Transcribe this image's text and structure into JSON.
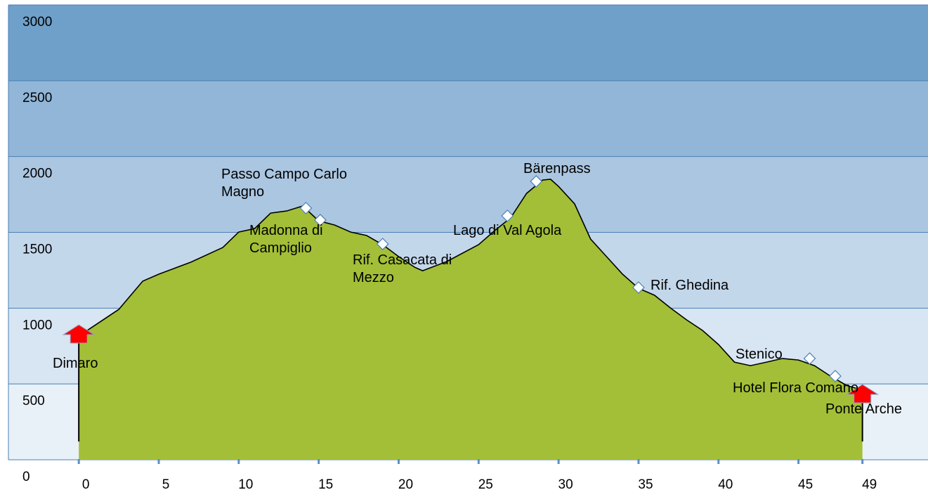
{
  "chart_data": {
    "type": "area",
    "color": "#a3bf37",
    "line_color": "#000000",
    "band_colors": [
      "#e9f1f8",
      "#d8e5f2",
      "#c3d7eb",
      "#abc6e1",
      "#91b6d8",
      "#6fa0c9"
    ],
    "grid_color": "#4a7fb5",
    "xlim": [
      -4.4,
      53.1
    ],
    "ylim": [
      0,
      3000
    ],
    "xticks": [
      0,
      5,
      10,
      15,
      20,
      25,
      30,
      35,
      40,
      45,
      49
    ],
    "yticks": [
      0,
      500,
      1000,
      1500,
      2000,
      2500,
      3000
    ],
    "x": [
      0,
      2.5,
      4,
      5,
      7,
      9,
      10,
      11,
      12,
      13,
      14,
      15,
      16,
      17,
      18,
      19,
      20,
      21,
      21.5,
      23,
      25,
      26,
      27,
      28,
      29,
      29.5,
      30,
      31,
      32,
      33,
      34,
      35,
      36,
      37,
      38,
      39,
      40,
      41,
      42,
      43,
      44,
      45,
      46,
      47,
      48,
      49
    ],
    "values": [
      816,
      992,
      1178,
      1224,
      1303,
      1400,
      1502,
      1525,
      1627,
      1641,
      1674,
      1576,
      1548,
      1502,
      1479,
      1419,
      1340,
      1270,
      1247,
      1307,
      1419,
      1511,
      1595,
      1757,
      1845,
      1850,
      1803,
      1688,
      1456,
      1340,
      1224,
      1131,
      1085,
      1001,
      923,
      853,
      760,
      644,
      621,
      644,
      668,
      658,
      621,
      552,
      491,
      459
    ],
    "annotations": [
      {
        "label": "Dimaro",
        "x": 0,
        "y": 853,
        "marker": "arrow",
        "color": "#ff0000"
      },
      {
        "label": "Passo Campo Carlo Magno",
        "x": 14.2,
        "y": 1660,
        "marker": "diamond",
        "color": "#ffffff"
      },
      {
        "label": "Madonna di Campiglio",
        "x": 15.1,
        "y": 1581,
        "marker": "diamond",
        "color": "#ffffff"
      },
      {
        "label": "Rif. Casacata di Mezzo",
        "x": 19,
        "y": 1423,
        "marker": "diamond",
        "color": "#ffffff"
      },
      {
        "label": "Lago di Val Agola",
        "x": 26.8,
        "y": 1609,
        "marker": "diamond",
        "color": "#ffffff"
      },
      {
        "label": "Bärenpass",
        "x": 28.6,
        "y": 1836,
        "marker": "diamond",
        "color": "#ffffff"
      },
      {
        "label": "Rif. Ghedina",
        "x": 35,
        "y": 1136,
        "marker": "diamond",
        "color": "#ffffff"
      },
      {
        "label": "Stenico",
        "x": 45.7,
        "y": 668,
        "marker": "diamond",
        "color": "#ffffff"
      },
      {
        "label": "Hotel Flora Comano",
        "x": 47.3,
        "y": 552,
        "marker": "diamond",
        "color": "#ffffff"
      },
      {
        "label": "Ponte Arche",
        "x": 49,
        "y": 459,
        "marker": "arrow",
        "color": "#ff0000"
      }
    ]
  }
}
